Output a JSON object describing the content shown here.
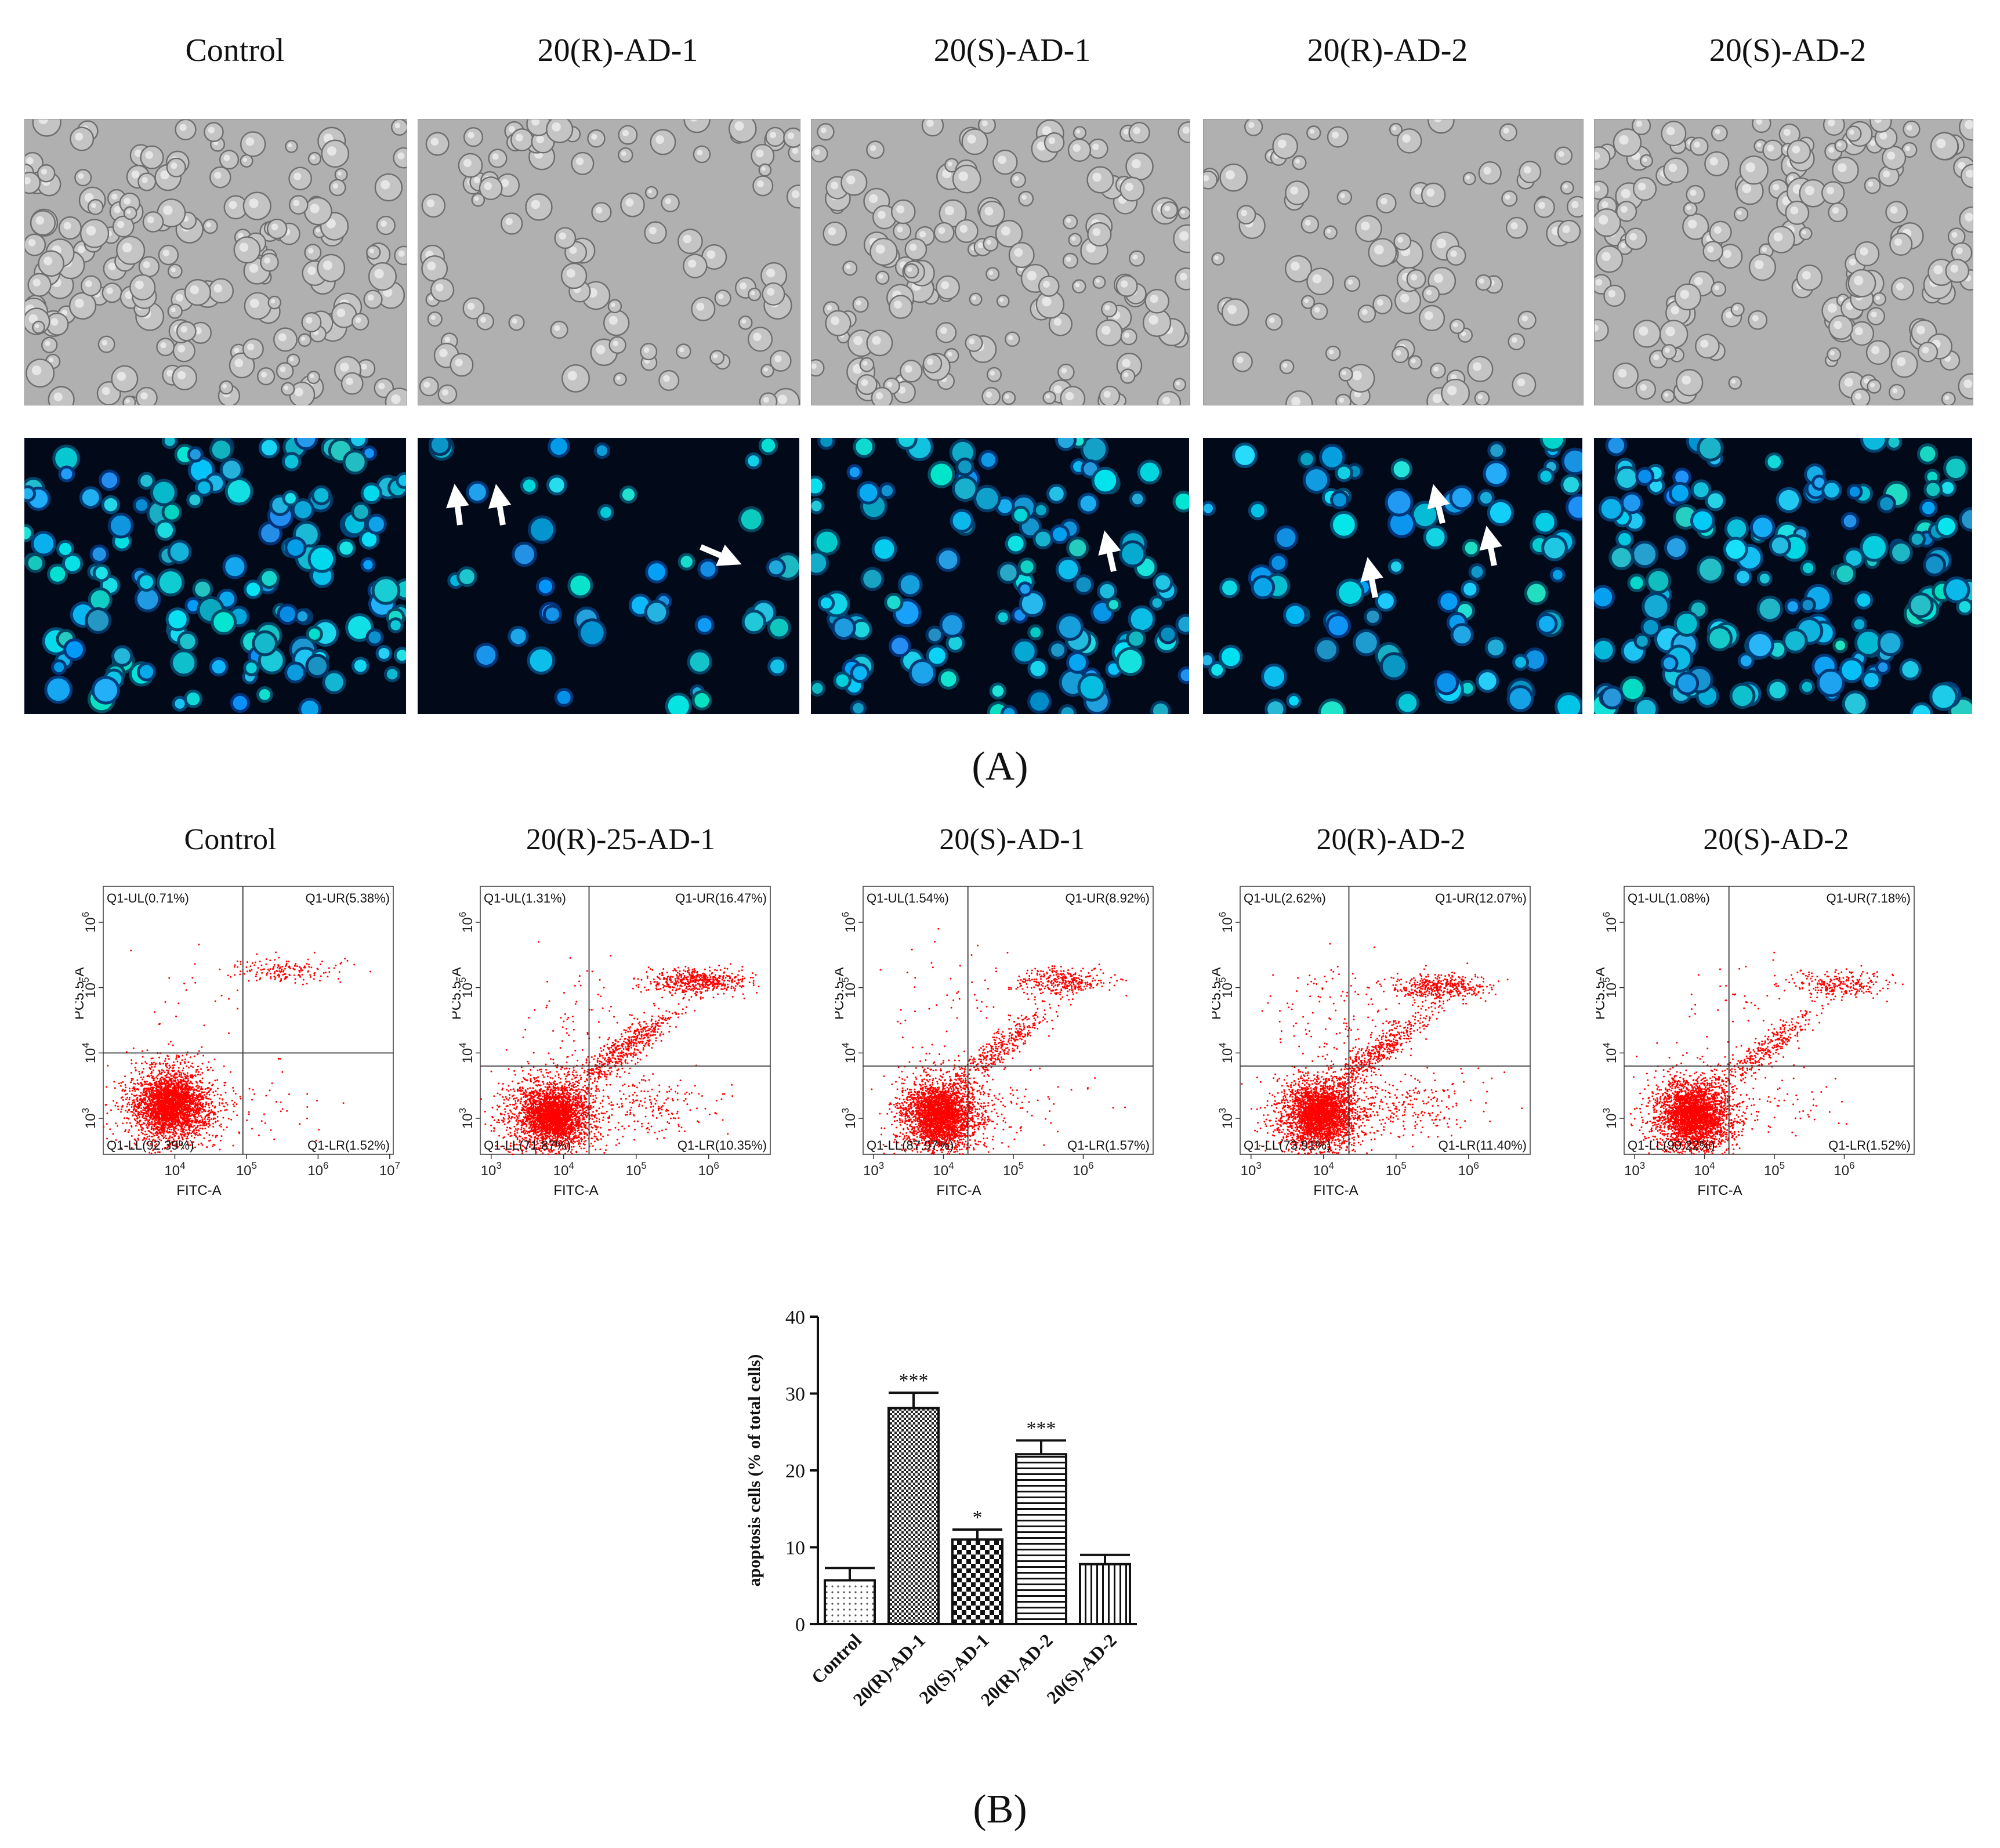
{
  "panelA": {
    "label": "(A)",
    "columns": [
      "Control",
      "20(R)-AD-1",
      "20(S)-AD-1",
      "20(R)-AD-2",
      "20(S)-AD-2"
    ],
    "rows": [
      "brightfield",
      "hoechst-fluorescence"
    ]
  },
  "panelB": {
    "label": "(B)",
    "flow_titles": [
      "Control",
      "20(R)-25-AD-1",
      "20(S)-AD-1",
      "20(R)-AD-2",
      "20(S)-AD-2"
    ],
    "flow_axes": {
      "x_label": "FITC-A",
      "y_label": "PC5.5-A"
    },
    "flow_plots": [
      {
        "quadrants": {
          "UL": "Q1-UL(0.71%)",
          "UR": "Q1-UR(5.38%)",
          "LL": "Q1-LL(92.39%)",
          "LR": "Q1-LR(1.52%)"
        },
        "x_ticks": [
          "10^4",
          "10^5",
          "10^6",
          "10^7"
        ],
        "x_tick_values": [
          4,
          5,
          6,
          7
        ],
        "x_range": [
          3.0,
          7.05
        ],
        "y_ticks": [
          "10^3",
          "10^4",
          "10^5",
          "10^6"
        ],
        "y_tick_values": [
          3,
          4,
          5,
          6
        ],
        "gate": {
          "x": 4.95,
          "y": 4.0
        }
      },
      {
        "quadrants": {
          "UL": "Q1-UL(1.31%)",
          "UR": "Q1-UR(16.47%)",
          "LL": "Q1-LL(71.87%)",
          "LR": "Q1-LR(10.35%)"
        },
        "x_ticks": [
          "10^3",
          "10^4",
          "10^5",
          "10^6"
        ],
        "x_tick_values": [
          3,
          4,
          5,
          6
        ],
        "x_range": [
          2.85,
          6.85
        ],
        "y_ticks": [
          "10^3",
          "10^4",
          "10^5",
          "10^6"
        ],
        "y_tick_values": [
          3,
          4,
          5,
          6
        ],
        "gate": {
          "x": 4.35,
          "y": 3.8
        }
      },
      {
        "quadrants": {
          "UL": "Q1-UL(1.54%)",
          "UR": "Q1-UR(8.92%)",
          "LL": "Q1-LL(87.97%)",
          "LR": "Q1-LR(1.57%)"
        },
        "x_ticks": [
          "10^3",
          "10^4",
          "10^5",
          "10^6"
        ],
        "x_tick_values": [
          3,
          4,
          5,
          6
        ],
        "x_range": [
          2.85,
          7.0
        ],
        "y_ticks": [
          "10^3",
          "10^4",
          "10^5",
          "10^6"
        ],
        "y_tick_values": [
          3,
          4,
          5,
          6
        ],
        "gate": {
          "x": 4.35,
          "y": 3.8
        }
      },
      {
        "quadrants": {
          "UL": "Q1-UL(2.62%)",
          "UR": "Q1-UR(12.07%)",
          "LL": "Q1-LL(73.91%)",
          "LR": "Q1-LR(11.40%)"
        },
        "x_ticks": [
          "10^3",
          "10^4",
          "10^5",
          "10^6"
        ],
        "x_tick_values": [
          3,
          4,
          5,
          6
        ],
        "x_range": [
          2.85,
          6.85
        ],
        "y_ticks": [
          "10^3",
          "10^4",
          "10^5",
          "10^6"
        ],
        "y_tick_values": [
          3,
          4,
          5,
          6
        ],
        "gate": {
          "x": 4.35,
          "y": 3.8
        }
      },
      {
        "quadrants": {
          "UL": "Q1-UL(1.08%)",
          "UR": "Q1-UR(7.18%)",
          "LL": "Q1-LL(90.22%)",
          "LR": "Q1-LR(1.52%)"
        },
        "x_ticks": [
          "10^3",
          "10^4",
          "10^5",
          "10^6"
        ],
        "x_tick_values": [
          3,
          4,
          5,
          6
        ],
        "x_range": [
          2.85,
          7.0
        ],
        "y_ticks": [
          "10^3",
          "10^4",
          "10^5",
          "10^6"
        ],
        "y_tick_values": [
          3,
          4,
          5,
          6
        ],
        "gate": {
          "x": 4.35,
          "y": 3.8
        }
      }
    ]
  },
  "chart_data": {
    "type": "bar",
    "categories": [
      "Control",
      "20(R)-AD-1",
      "20(S)-AD-1",
      "20(R)-AD-2",
      "20(S)-AD-2"
    ],
    "values": [
      5.7,
      28.1,
      11.0,
      22.1,
      7.8
    ],
    "errors": [
      1.6,
      2.0,
      1.3,
      1.8,
      1.2
    ],
    "significance": [
      "",
      "***",
      "*",
      "***",
      ""
    ],
    "ylabel": "apoptosis cells (% of total cells)",
    "ylim": [
      0,
      40
    ],
    "yticks": [
      0,
      10,
      20,
      30,
      40
    ],
    "patterns": [
      "dots",
      "fine-checker",
      "coarse-checker",
      "horizontal-lines",
      "vertical-lines"
    ]
  }
}
